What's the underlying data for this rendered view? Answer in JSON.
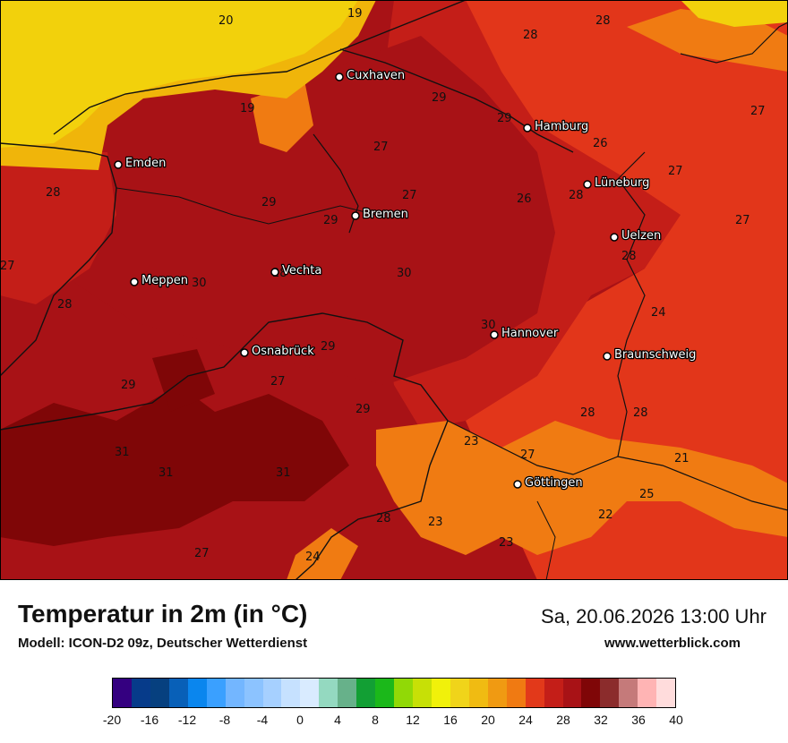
{
  "map": {
    "cities": [
      {
        "name": "Cuxhaven"
      },
      {
        "name": "Hamburg"
      },
      {
        "name": "Emden"
      },
      {
        "name": "Lüneburg"
      },
      {
        "name": "Bremen"
      },
      {
        "name": "Uelzen"
      },
      {
        "name": "Vechta"
      },
      {
        "name": "Meppen"
      },
      {
        "name": "Hannover"
      },
      {
        "name": "Osnabrück"
      },
      {
        "name": "Braunschweig"
      },
      {
        "name": "Göttingen"
      }
    ],
    "temperature_labels": [
      "20",
      "19",
      "28",
      "28",
      "19",
      "29",
      "29",
      "27",
      "27",
      "26",
      "27",
      "27",
      "28",
      "29",
      "27",
      "29",
      "26",
      "28",
      "27",
      "28",
      "28",
      "30",
      "30",
      "28",
      "24",
      "30",
      "29",
      "29",
      "27",
      "28",
      "29",
      "28",
      "23",
      "27",
      "31",
      "31",
      "31",
      "21",
      "25",
      "28",
      "23",
      "22",
      "23",
      "27",
      "24"
    ],
    "colors": {
      "yellow": "#f2d10c",
      "orange_yellow": "#f0b50a",
      "orange": "#f07b12",
      "orange_red": "#e2361a",
      "red": "#c41e18",
      "dark_red": "#a81216",
      "deep_red": "#7f0607",
      "water": "#eef1f5",
      "outline": "#111111"
    }
  },
  "footer": {
    "title": "Temperatur in 2m (in °C)",
    "model": "Modell: ICON-D2 09z, Deutscher Wetterdienst",
    "datetime": "Sa, 20.06.2026 13:00 Uhr",
    "site": "www.wetterblick.com"
  },
  "legend": {
    "ticks": [
      "-20",
      "-16",
      "-12",
      "-8",
      "-4",
      "0",
      "4",
      "8",
      "12",
      "16",
      "20",
      "24",
      "28",
      "32",
      "36",
      "40"
    ],
    "colors": [
      "#340080",
      "#063b8a",
      "#06407f",
      "#0860b8",
      "#0a86ee",
      "#3aa0ff",
      "#73b6ff",
      "#8cc3ff",
      "#a6d0ff",
      "#c6e1ff",
      "#d9ebff",
      "#94d9c0",
      "#67b18a",
      "#129f34",
      "#1bb81a",
      "#91d906",
      "#c7e006",
      "#f1f10a",
      "#f0d41a",
      "#f0bb12",
      "#f09a12",
      "#f07a12",
      "#e2391a",
      "#c41e18",
      "#a81216",
      "#7f0607",
      "#8b2c2c",
      "#c57a7a",
      "#ffb4b4",
      "#ffdcdc"
    ]
  }
}
